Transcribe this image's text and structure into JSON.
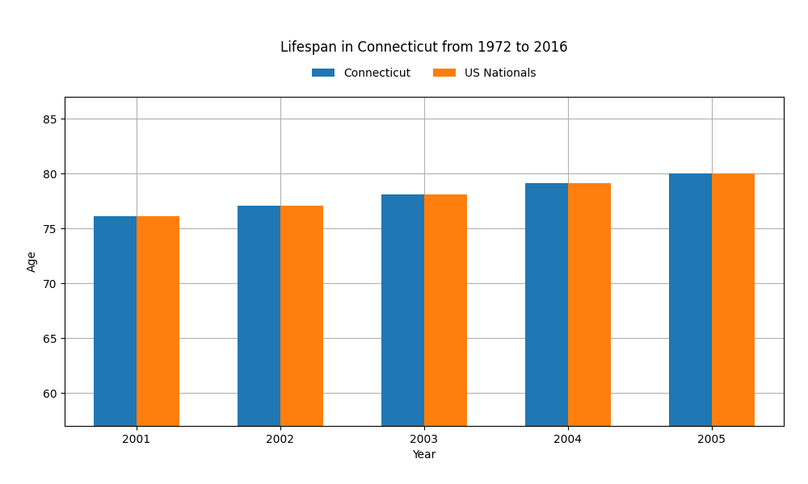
{
  "chart_data": {
    "type": "bar",
    "title": "Lifespan in Connecticut from 1972 to 2016",
    "x_label": "Year",
    "y_label": "Age",
    "categories": [
      "2001",
      "2002",
      "2003",
      "2004",
      "2005"
    ],
    "series": [
      {
        "name": "Connecticut",
        "values": [
          76.1,
          77.1,
          78.1,
          79.1,
          80.0
        ]
      },
      {
        "name": "US Nationals",
        "values": [
          76.1,
          77.1,
          78.1,
          79.1,
          80.0
        ]
      }
    ],
    "ylim": [
      57,
      87
    ],
    "yticks": [
      60,
      65,
      70,
      75,
      80,
      85
    ],
    "grid": true,
    "legend": "upper center"
  }
}
